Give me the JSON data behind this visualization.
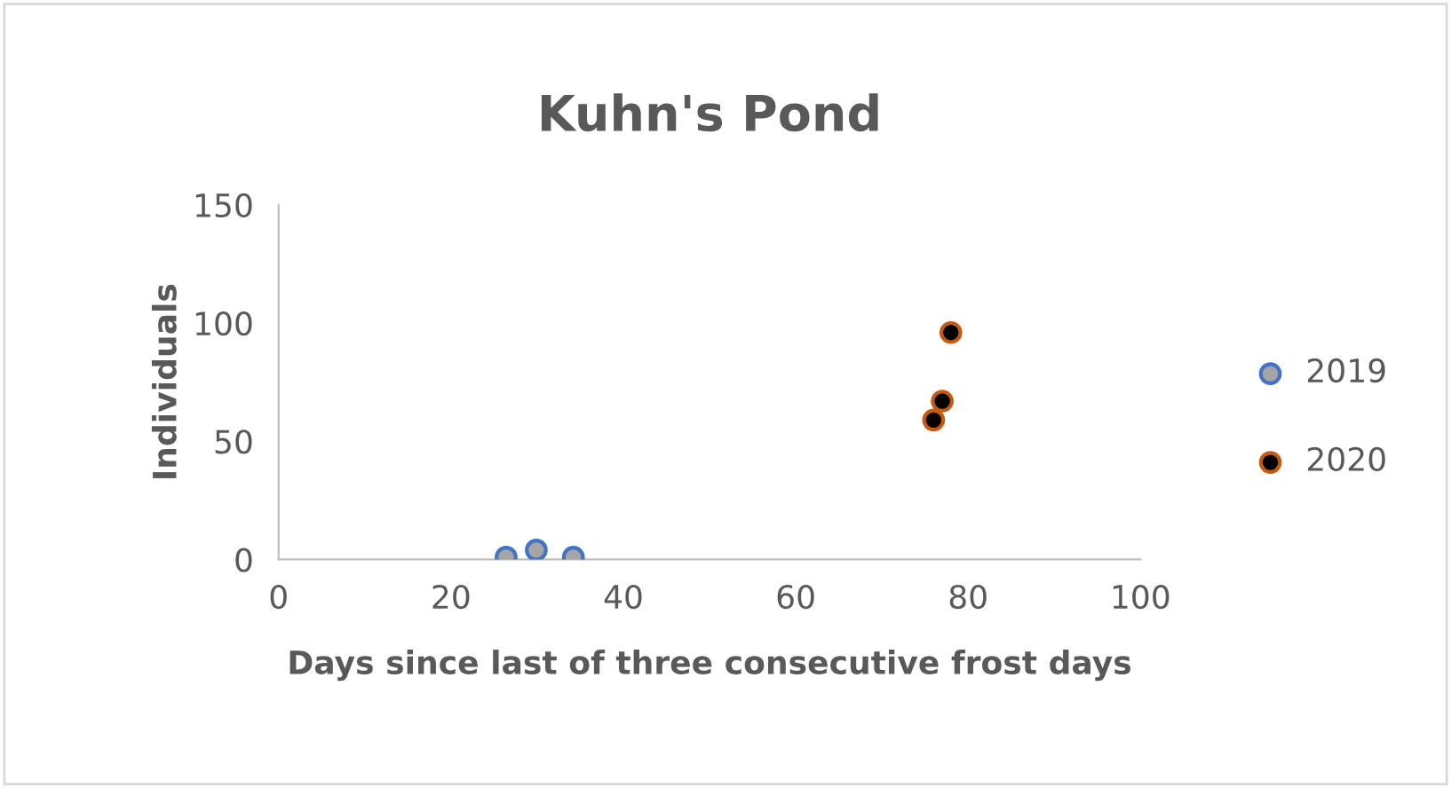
{
  "chart_data": {
    "type": "scatter",
    "title": "Kuhn's Pond",
    "xlabel": "Days since last of three consecutive frost days",
    "ylabel": "Individuals",
    "xlim": [
      0,
      100
    ],
    "xticks": [
      0,
      20,
      40,
      60,
      80,
      100
    ],
    "ylim": [
      0,
      150
    ],
    "yticks": [
      0,
      50,
      100,
      150
    ],
    "grid": false,
    "legend": "right",
    "marker": "circle",
    "series": [
      {
        "name": "2019",
        "color": "#a5a5a5",
        "x": [
          26.4,
          29.9,
          34.2
        ],
        "values": [
          1,
          4,
          1
        ]
      },
      {
        "name": "2020",
        "color": "#000000",
        "x": [
          76,
          77,
          78
        ],
        "values": [
          59,
          67,
          96
        ]
      }
    ]
  }
}
